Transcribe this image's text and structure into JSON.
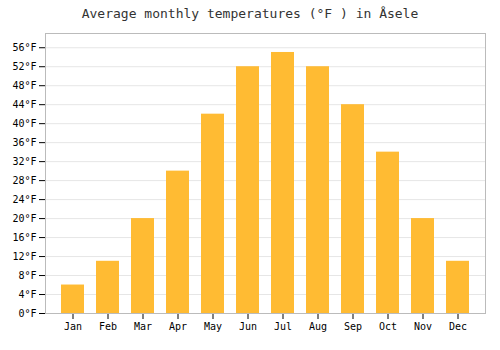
{
  "chart_data": {
    "type": "bar",
    "title": "Average monthly temperatures (°F ) in Åsele",
    "categories": [
      "Jan",
      "Feb",
      "Mar",
      "Apr",
      "May",
      "Jun",
      "Jul",
      "Aug",
      "Sep",
      "Oct",
      "Nov",
      "Dec"
    ],
    "values": [
      6,
      11,
      20,
      30,
      42,
      52,
      55,
      52,
      44,
      34,
      20,
      11
    ],
    "color": "#FFBB33",
    "ylim": [
      0,
      59
    ],
    "yticks": [
      {
        "value": 0,
        "label": "0°F"
      },
      {
        "value": 4,
        "label": "4°F"
      },
      {
        "value": 8,
        "label": "8°F"
      },
      {
        "value": 12,
        "label": "12°F"
      },
      {
        "value": 16,
        "label": "16°F"
      },
      {
        "value": 20,
        "label": "20°F"
      },
      {
        "value": 24,
        "label": "24°F"
      },
      {
        "value": 28,
        "label": "28°F"
      },
      {
        "value": 32,
        "label": "32°F"
      },
      {
        "value": 36,
        "label": "36°F"
      },
      {
        "value": 40,
        "label": "40°F"
      },
      {
        "value": 44,
        "label": "44°F"
      },
      {
        "value": 48,
        "label": "48°F"
      },
      {
        "value": 52,
        "label": "52°F"
      },
      {
        "value": 56,
        "label": "56°F"
      }
    ],
    "grid": true
  }
}
